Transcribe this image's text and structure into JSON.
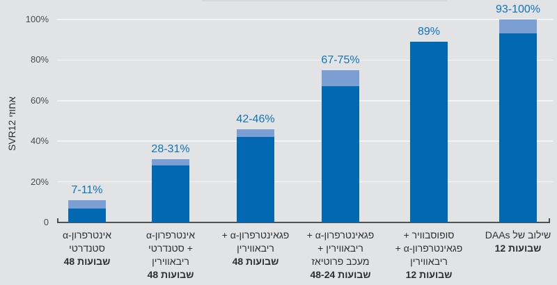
{
  "chart_data": {
    "type": "bar",
    "title": "",
    "ylabel": "אחוזי SVR12",
    "xlabel": "",
    "ylim": [
      0,
      100
    ],
    "grid": true,
    "legend": "none",
    "bar_encoding": "dark segment = low end of SVR12 range, light segment = high end of range",
    "yticks": [
      {
        "label": "100%",
        "value": 100
      },
      {
        "label": "80%",
        "value": 80
      },
      {
        "label": "60%",
        "value": 60
      },
      {
        "label": "40%",
        "value": 40
      },
      {
        "label": "20%",
        "value": 20
      },
      {
        "label": "0",
        "value": 0
      }
    ],
    "bars": [
      {
        "value_label": "7-11%",
        "low": 7,
        "high": 11,
        "label_lines": [
          {
            "text": "אינטרפרון-α",
            "dir": "rtl",
            "bold": false
          },
          {
            "text": "סטנדרטי",
            "dir": "rtl",
            "bold": false
          },
          {
            "text": "48 שבועות",
            "dir": "ltr",
            "bold": true
          }
        ]
      },
      {
        "value_label": "28-31%",
        "low": 28,
        "high": 31,
        "label_lines": [
          {
            "text": "אינטרפרון-α",
            "dir": "rtl",
            "bold": false
          },
          {
            "text": "סטנדרטי +",
            "dir": "ltr",
            "bold": false
          },
          {
            "text": "ריבאווירין",
            "dir": "rtl",
            "bold": false
          },
          {
            "text": "48 שבועות",
            "dir": "ltr",
            "bold": true
          }
        ]
      },
      {
        "value_label": "42-46%",
        "low": 42,
        "high": 46,
        "label_lines": [
          {
            "text": "פגאינטרפרון-α +",
            "dir": "rtl",
            "bold": false
          },
          {
            "text": "ריבאווירין",
            "dir": "rtl",
            "bold": false
          },
          {
            "text": "48 שבועות",
            "dir": "ltr",
            "bold": true
          }
        ]
      },
      {
        "value_label": "67-75%",
        "low": 67,
        "high": 75,
        "label_lines": [
          {
            "text": "פגאינטרפרון-α +",
            "dir": "rtl",
            "bold": false
          },
          {
            "text": "ריבאווירין +",
            "dir": "rtl",
            "bold": false
          },
          {
            "text": "מעכב פרוטיאז",
            "dir": "rtl",
            "bold": false
          },
          {
            "text": "48-24 שבועות",
            "dir": "ltr",
            "bold": true
          }
        ]
      },
      {
        "value_label": "89%",
        "low": 89,
        "high": 89,
        "label_lines": [
          {
            "text": "סופוסבוויר +",
            "dir": "rtl",
            "bold": false
          },
          {
            "text": "פגאינטרפרון-α +",
            "dir": "rtl",
            "bold": false
          },
          {
            "text": "ריבאווירין",
            "dir": "rtl",
            "bold": false
          },
          {
            "text": "12 שבועות",
            "dir": "ltr",
            "bold": true
          }
        ]
      },
      {
        "value_label": "93-100%",
        "low": 93,
        "high": 100,
        "label_lines": [
          {
            "text": "שילוב של DAAs",
            "dir": "rtl",
            "bold": false
          },
          {
            "text": "12 שבועות",
            "dir": "ltr",
            "bold": true
          }
        ]
      }
    ],
    "colors": {
      "bar_dark": "#0268b2",
      "bar_light": "#7c9fd3",
      "value_label": "#0e74b9",
      "axis": "#4d4f50",
      "label_text": "#2e2e2e",
      "tick_text": "#4a4a4a",
      "background": "#e2e3e4",
      "gridline": "#f3f4f5"
    }
  }
}
